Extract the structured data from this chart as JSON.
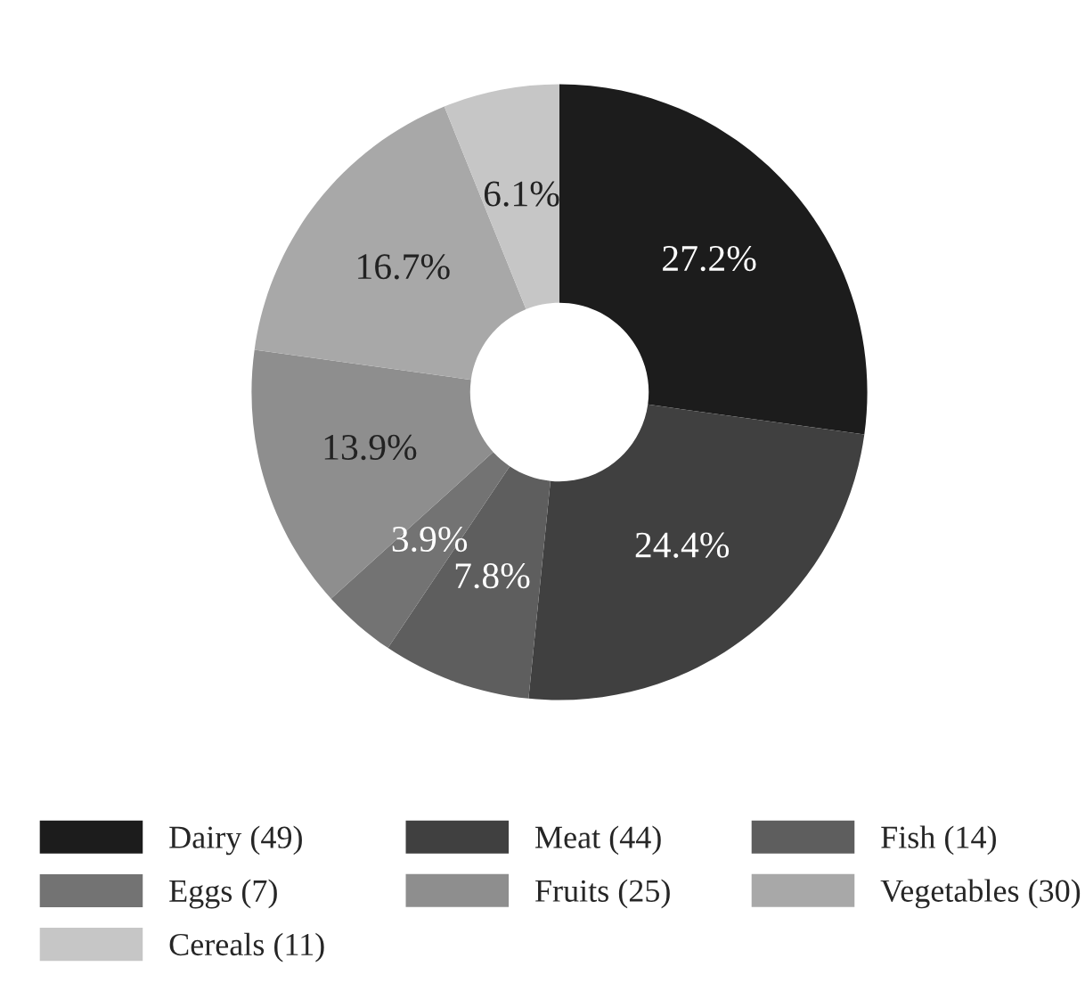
{
  "chart_data": {
    "type": "donut",
    "categories": [
      "Dairy (49)",
      "Meat (44)",
      "Fish (14)",
      "Eggs (7)",
      "Fruits (25)",
      "Vegetables (30)",
      "Cereals (11)"
    ],
    "values": [
      27.2,
      24.4,
      7.8,
      3.9,
      13.9,
      16.7,
      6.1
    ],
    "value_labels": [
      "27.2%",
      "24.4%",
      "7.8%",
      "3.9%",
      "13.9%",
      "16.7%",
      "6.1%"
    ],
    "colors": [
      "#1c1c1c",
      "#404040",
      "#5e5e5e",
      "#737373",
      "#8e8e8e",
      "#a8a8a8",
      "#c6c6c6"
    ],
    "legend": "bottom"
  }
}
